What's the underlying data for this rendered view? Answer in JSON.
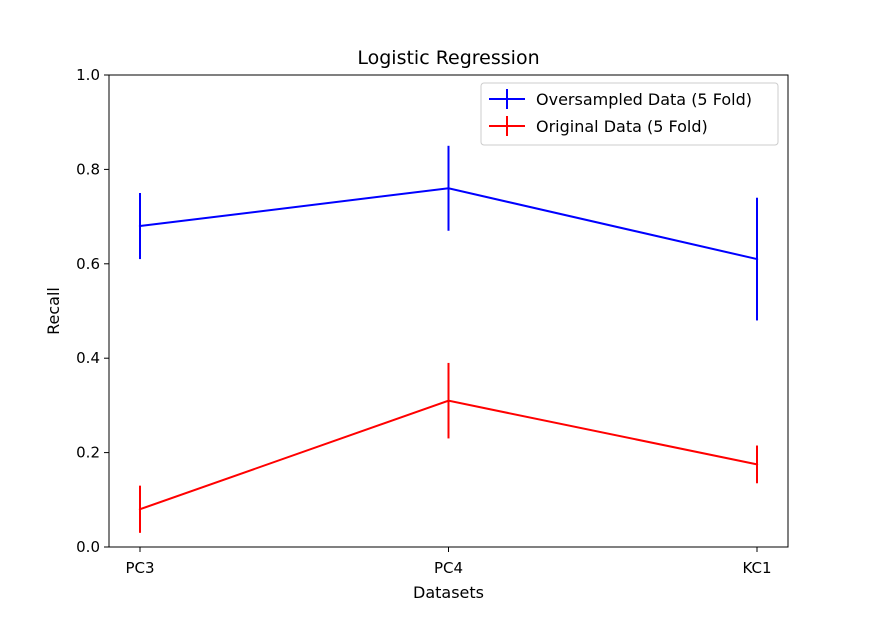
{
  "chart_data": {
    "type": "line",
    "title": "Logistic Regression",
    "xlabel": "Datasets",
    "ylabel": "Recall",
    "categories": [
      "PC3",
      "PC4",
      "KC1"
    ],
    "ylim": [
      0.0,
      1.0
    ],
    "yticks": [
      "0.0",
      "0.2",
      "0.4",
      "0.6",
      "0.8",
      "1.0"
    ],
    "grid": false,
    "legend_position": "top-right",
    "series": [
      {
        "name": "Oversampled Data (5 Fold)",
        "color": "#0000ff",
        "values": [
          0.68,
          0.76,
          0.61
        ],
        "errors": [
          0.07,
          0.09,
          0.13
        ]
      },
      {
        "name": "Original Data (5 Fold)",
        "color": "#ff0000",
        "values": [
          0.08,
          0.31,
          0.175
        ],
        "errors": [
          0.05,
          0.08,
          0.04
        ]
      }
    ]
  }
}
